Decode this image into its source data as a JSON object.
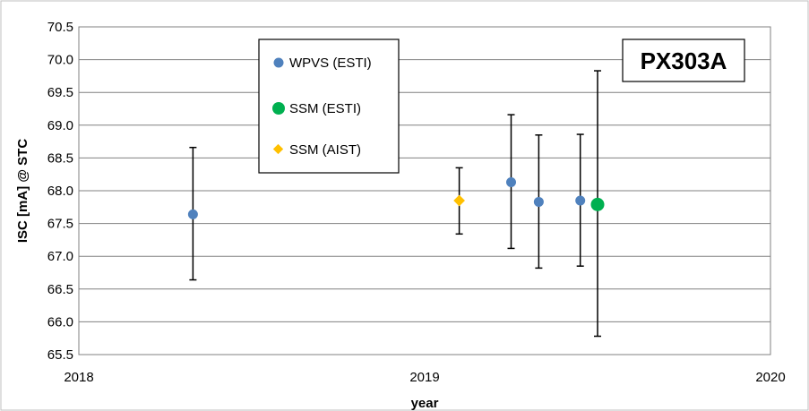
{
  "chart_data": {
    "type": "scatter",
    "title": "",
    "xlabel": "year",
    "ylabel": "ISC [mA] @ STC",
    "xlim": [
      2018,
      2020
    ],
    "ylim": [
      65.5,
      70.5
    ],
    "x_ticks": [
      "2018",
      "2019",
      "2020"
    ],
    "y_ticks": [
      "65.5",
      "66.0",
      "66.5",
      "67.0",
      "67.5",
      "68.0",
      "68.5",
      "69.0",
      "69.5",
      "70.0",
      "70.5"
    ],
    "grid": "horizontal",
    "legend_position": "top-left",
    "annotation": "PX303A",
    "series": [
      {
        "name": "WPVS (ESTI)",
        "color": "#4f81bd",
        "marker": "circle",
        "points": [
          {
            "x": 2018.33,
            "y": 67.64,
            "err_low": 66.64,
            "err_high": 68.66
          },
          {
            "x": 2019.25,
            "y": 68.13,
            "err_low": 67.12,
            "err_high": 69.16
          },
          {
            "x": 2019.33,
            "y": 67.83,
            "err_low": 66.82,
            "err_high": 68.85
          },
          {
            "x": 2019.45,
            "y": 67.85,
            "err_low": 66.85,
            "err_high": 68.86
          }
        ]
      },
      {
        "name": "SSM (ESTI)",
        "color": "#00b050",
        "marker": "circle-large",
        "points": [
          {
            "x": 2019.5,
            "y": 67.79,
            "err_low": 65.78,
            "err_high": 69.83
          }
        ]
      },
      {
        "name": "SSM (AIST)",
        "color": "#ffc000",
        "marker": "diamond",
        "points": [
          {
            "x": 2019.1,
            "y": 67.85,
            "err_low": 67.34,
            "err_high": 68.35
          }
        ]
      }
    ]
  }
}
